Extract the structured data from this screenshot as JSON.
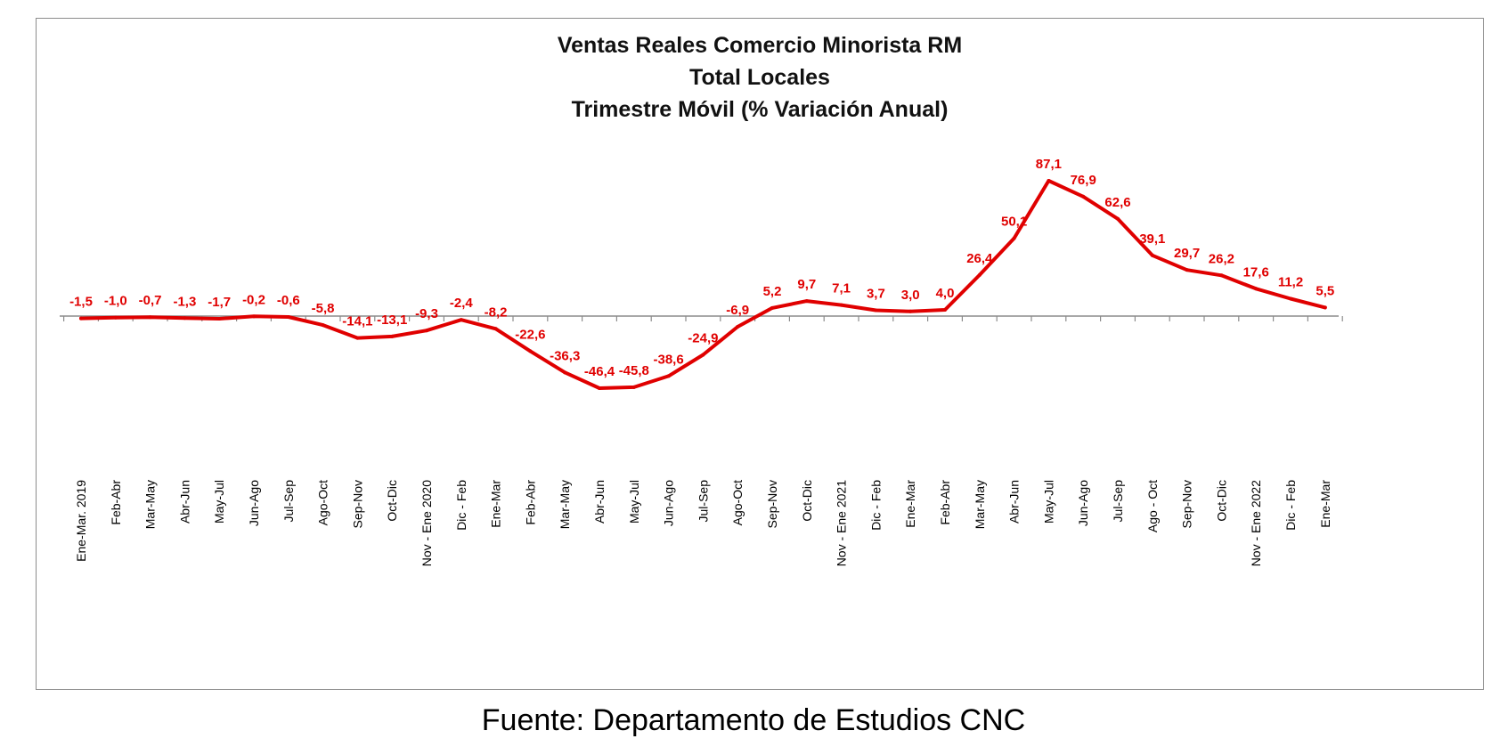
{
  "chart_data": {
    "type": "line",
    "title": [
      "Ventas Reales Comercio Minorista RM",
      "Total Locales",
      "Trimestre Móvil (% Variación Anual)"
    ],
    "xlabel": "",
    "ylabel": "",
    "grid": false,
    "legend": "none",
    "categories": [
      "Ene-Mar. 2019",
      "Feb-Abr",
      "Mar-May",
      "Abr-Jun",
      "May-Jul",
      "Jun-Ago",
      "Jul-Sep",
      "Ago-Oct",
      "Sep-Nov",
      "Oct-Dic",
      "Nov - Ene 2020",
      "Dic - Feb",
      "Ene-Mar",
      "Feb-Abr",
      "Mar-May",
      "Abr-Jun",
      "May-Jul",
      "Jun-Ago",
      "Jul-Sep",
      "Ago-Oct",
      "Sep-Nov",
      "Oct-Dic",
      "Nov - Ene 2021",
      "Dic - Feb",
      "Ene-Mar",
      "Feb-Abr",
      "Mar-May",
      "Abr-Jun",
      "May-Jul",
      "Jun-Ago",
      "Jul-Sep",
      "Ago - Oct",
      "Sep-Nov",
      "Oct-Dic",
      "Nov - Ene 2022",
      "Dic - Feb",
      "Ene-Mar"
    ],
    "series": [
      {
        "values": [
          -1.5,
          -1.0,
          -0.7,
          -1.3,
          -1.7,
          -0.2,
          -0.6,
          -5.8,
          -14.1,
          -13.1,
          -9.3,
          -2.4,
          -8.2,
          -22.6,
          -36.3,
          -46.4,
          -45.8,
          -38.6,
          -24.9,
          -6.9,
          5.2,
          9.7,
          7.1,
          3.7,
          3.0,
          4.0,
          26.4,
          50.1,
          87.1,
          76.9,
          62.6,
          39.1,
          29.7,
          26.2,
          17.6,
          11.2,
          5.5
        ],
        "labels": [
          "-1,5",
          "-1,0",
          "-0,7",
          "-1,3",
          "-1,7",
          "-0,2",
          "-0,6",
          "-5,8",
          "-14,1",
          "-13,1",
          "-9,3",
          "-2,4",
          "-8,2",
          "-22,6",
          "-36,3",
          "-46,4",
          "-45,8",
          "-38,6",
          "-24,9",
          "-6,9",
          "5,2",
          "9,7",
          "7,1",
          "3,7",
          "3,0",
          "4,0",
          "26,4",
          "50,1",
          "87,1",
          "76,9",
          "62,6",
          "39,1",
          "29,7",
          "26,2",
          "17,6",
          "11,2",
          "5,5"
        ],
        "color": "#e00000"
      }
    ]
  },
  "source": "Fuente: Departamento de Estudios CNC"
}
